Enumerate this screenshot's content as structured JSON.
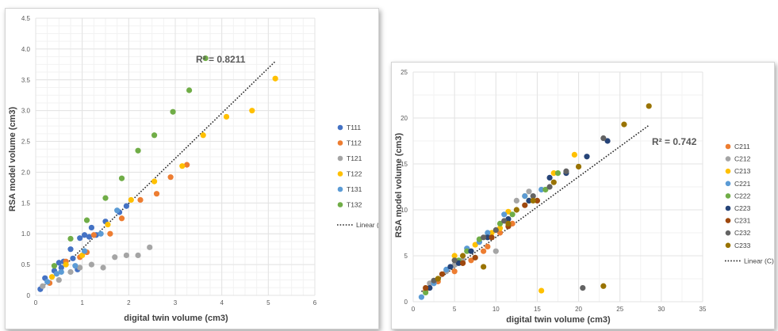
{
  "chart_data": [
    {
      "type": "scatter",
      "xlabel": "digital twin volume (cm3)",
      "ylabel": "RSA model volume (cm3)",
      "xlim": [
        0,
        6
      ],
      "ylim": [
        0,
        4.5
      ],
      "xticks": [
        "0",
        "1",
        "2",
        "3",
        "4",
        "5",
        "6"
      ],
      "yticks": [
        "0",
        "0.5",
        "1.0",
        "1.5",
        "2.0",
        "2.5",
        "3.0",
        "3.5",
        "4.0",
        "4.5"
      ],
      "grid": true,
      "legend_position": "right",
      "annotation": "R² = 0.8211",
      "trendline": {
        "label": "Linear (T)",
        "start": [
          0.1,
          0.1
        ],
        "end": [
          5.15,
          3.8
        ]
      },
      "series": [
        {
          "name": "T111",
          "color": "#4472C4",
          "points": [
            [
              0.1,
              0.1
            ],
            [
              0.2,
              0.28
            ],
            [
              0.4,
              0.4
            ],
            [
              0.5,
              0.53
            ],
            [
              0.6,
              0.55
            ],
            [
              0.75,
              0.75
            ],
            [
              0.95,
              0.93
            ],
            [
              1.05,
              0.98
            ],
            [
              1.2,
              1.1
            ],
            [
              1.3,
              0.98
            ],
            [
              1.5,
              1.2
            ],
            [
              1.8,
              1.35
            ],
            [
              1.95,
              1.45
            ],
            [
              0.9,
              0.42
            ],
            [
              0.8,
              0.6
            ],
            [
              1.15,
              0.95
            ],
            [
              0.55,
              0.45
            ]
          ]
        },
        {
          "name": "T112",
          "color": "#ED7D31",
          "points": [
            [
              0.3,
              0.2
            ],
            [
              0.65,
              0.55
            ],
            [
              0.95,
              0.62
            ],
            [
              1.25,
              0.98
            ],
            [
              1.6,
              1.0
            ],
            [
              1.85,
              1.25
            ],
            [
              2.25,
              1.55
            ],
            [
              2.6,
              1.65
            ],
            [
              2.9,
              1.92
            ],
            [
              3.25,
              2.12
            ],
            [
              1.1,
              0.7
            ]
          ]
        },
        {
          "name": "T121",
          "color": "#A5A5A5",
          "points": [
            [
              0.15,
              0.15
            ],
            [
              0.5,
              0.25
            ],
            [
              0.75,
              0.38
            ],
            [
              0.95,
              0.45
            ],
            [
              1.2,
              0.5
            ],
            [
              1.45,
              0.45
            ],
            [
              1.7,
              0.62
            ],
            [
              1.95,
              0.65
            ],
            [
              2.2,
              0.65
            ],
            [
              2.45,
              0.78
            ]
          ]
        },
        {
          "name": "T122",
          "color": "#FFC000",
          "points": [
            [
              0.65,
              0.5
            ],
            [
              1.0,
              0.65
            ],
            [
              1.55,
              1.15
            ],
            [
              2.05,
              1.55
            ],
            [
              2.55,
              1.85
            ],
            [
              3.15,
              2.1
            ],
            [
              3.6,
              2.6
            ],
            [
              4.1,
              2.9
            ],
            [
              4.65,
              3.0
            ],
            [
              5.15,
              3.52
            ],
            [
              0.35,
              0.3
            ]
          ]
        },
        {
          "name": "T131",
          "color": "#5B9BD5",
          "points": [
            [
              0.25,
              0.22
            ],
            [
              0.55,
              0.38
            ],
            [
              0.85,
              0.48
            ],
            [
              1.05,
              0.72
            ],
            [
              1.4,
              1.0
            ],
            [
              1.75,
              1.38
            ],
            [
              0.45,
              0.35
            ]
          ]
        },
        {
          "name": "T132",
          "color": "#70AD47",
          "points": [
            [
              0.4,
              0.48
            ],
            [
              0.75,
              0.92
            ],
            [
              1.1,
              1.22
            ],
            [
              1.5,
              1.58
            ],
            [
              1.85,
              1.9
            ],
            [
              2.2,
              2.35
            ],
            [
              2.55,
              2.6
            ],
            [
              2.95,
              2.98
            ],
            [
              3.3,
              3.33
            ],
            [
              3.65,
              3.85
            ]
          ]
        }
      ]
    },
    {
      "type": "scatter",
      "xlabel": "digital twin volume (cm3)",
      "ylabel": "RSA model volume (cm3)",
      "xlim": [
        0,
        35
      ],
      "ylim": [
        0,
        25
      ],
      "xticks": [
        "0",
        "5",
        "10",
        "15",
        "20",
        "25",
        "30",
        "35"
      ],
      "yticks": [
        "0",
        "5",
        "10",
        "15",
        "20",
        "25"
      ],
      "grid": true,
      "legend_position": "right",
      "annotation": "R² = 0.742",
      "trendline": {
        "label": "Linear (C)",
        "start": [
          1,
          1.1
        ],
        "end": [
          28.5,
          19.2
        ]
      },
      "series": [
        {
          "name": "C211",
          "color": "#ED7D31",
          "points": [
            [
              1.5,
              1.2
            ],
            [
              3,
              2.2
            ],
            [
              5,
              3.3
            ],
            [
              7,
              4.5
            ],
            [
              8.5,
              5.5
            ],
            [
              10.5,
              7.5
            ],
            [
              12,
              8.5
            ],
            [
              6,
              4.2
            ],
            [
              9,
              6
            ]
          ]
        },
        {
          "name": "C212",
          "color": "#A5A5A5",
          "points": [
            [
              2,
              2
            ],
            [
              4,
              3.3
            ],
            [
              6,
              4.5
            ],
            [
              8,
              6.5
            ],
            [
              10,
              5.5
            ],
            [
              12.5,
              11
            ],
            [
              14,
              12
            ],
            [
              9,
              7.2
            ],
            [
              5,
              4
            ]
          ]
        },
        {
          "name": "C213",
          "color": "#FFC000",
          "points": [
            [
              3,
              2.5
            ],
            [
              5,
              5
            ],
            [
              7.5,
              6.2
            ],
            [
              9.5,
              7.5
            ],
            [
              11.5,
              9.8
            ],
            [
              13.5,
              11.5
            ],
            [
              15.5,
              1.2
            ],
            [
              17,
              14
            ],
            [
              19.5,
              16
            ],
            [
              10.5,
              8
            ]
          ]
        },
        {
          "name": "C221",
          "color": "#5B9BD5",
          "points": [
            [
              1,
              0.5
            ],
            [
              2.5,
              2
            ],
            [
              4,
              3.5
            ],
            [
              6.5,
              5.8
            ],
            [
              9,
              7.5
            ],
            [
              11,
              9.5
            ],
            [
              13.5,
              11.5
            ],
            [
              15.5,
              12.2
            ],
            [
              8,
              6.5
            ]
          ]
        },
        {
          "name": "C222",
          "color": "#70AD47",
          "points": [
            [
              1.5,
              1
            ],
            [
              3,
              2.5
            ],
            [
              5.5,
              4.5
            ],
            [
              8,
              6.8
            ],
            [
              10.5,
              8.5
            ],
            [
              12,
              9.5
            ],
            [
              14,
              11
            ],
            [
              16,
              12.2
            ],
            [
              17.5,
              14
            ],
            [
              6.5,
              5.5
            ]
          ]
        },
        {
          "name": "C223",
          "color": "#264478",
          "points": [
            [
              2,
              1.5
            ],
            [
              4.5,
              3.8
            ],
            [
              7,
              5.5
            ],
            [
              9,
              7
            ],
            [
              11.5,
              9
            ],
            [
              14,
              11
            ],
            [
              16.5,
              13.5
            ],
            [
              18.5,
              14
            ],
            [
              21,
              15.8
            ],
            [
              23.5,
              17.5
            ],
            [
              5.5,
              4.2
            ]
          ]
        },
        {
          "name": "C231",
          "color": "#9E480E",
          "points": [
            [
              1.5,
              1.5
            ],
            [
              3.5,
              3
            ],
            [
              6,
              4.2
            ],
            [
              7.5,
              4.8
            ],
            [
              9.5,
              7
            ],
            [
              11.5,
              8.2
            ],
            [
              13.5,
              10.5
            ],
            [
              15,
              11
            ]
          ]
        },
        {
          "name": "C232",
          "color": "#636363",
          "points": [
            [
              2.5,
              2.3
            ],
            [
              5,
              4.5
            ],
            [
              8.5,
              7
            ],
            [
              11,
              8.8
            ],
            [
              14.5,
              11.5
            ],
            [
              16.5,
              12.5
            ],
            [
              18.5,
              14.2
            ],
            [
              20.5,
              1.5
            ],
            [
              23,
              17.8
            ],
            [
              10,
              7.8
            ]
          ]
        },
        {
          "name": "C233",
          "color": "#997300",
          "points": [
            [
              3,
              2.5
            ],
            [
              6,
              5
            ],
            [
              8.5,
              3.8
            ],
            [
              11.5,
              8.5
            ],
            [
              14.5,
              11
            ],
            [
              17,
              13
            ],
            [
              20,
              14.7
            ],
            [
              23,
              1.7
            ],
            [
              25.5,
              19.3
            ],
            [
              28.5,
              21.3
            ],
            [
              12.5,
              10
            ]
          ]
        }
      ]
    }
  ]
}
